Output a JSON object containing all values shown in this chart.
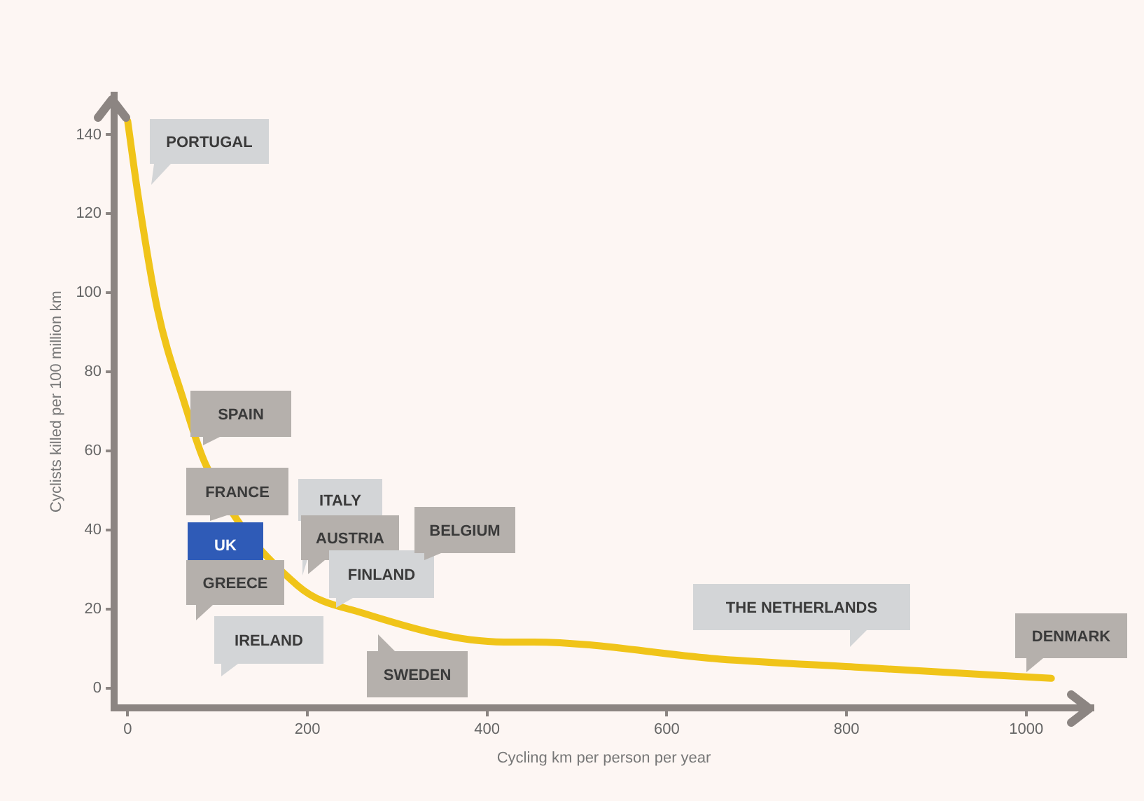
{
  "chart_data": {
    "type": "line",
    "xlabel": "Cycling km per person per year",
    "ylabel": "Cyclists killed per 100 million km",
    "xlim": [
      -15,
      1075
    ],
    "ylim": [
      -5,
      150
    ],
    "xticks": [
      0,
      200,
      400,
      600,
      800,
      1000
    ],
    "yticks": [
      0,
      20,
      40,
      60,
      80,
      100,
      120,
      140
    ],
    "marker": "none",
    "legend": false,
    "series": [
      {
        "color": "#f0c419",
        "x": [
          0,
          12,
          33,
          62,
          87,
          189,
          262,
          419,
          450,
          658,
          814,
          1028
        ],
        "values": [
          143.5,
          124,
          96,
          73,
          56.5,
          26,
          19,
          11.7,
          11.7,
          7.4,
          5.3,
          2.5
        ]
      }
    ],
    "annotations": [
      "PORTUGAL",
      "SPAIN",
      "FRANCE",
      "UK",
      "GREECE",
      "IRELAND",
      "ITALY",
      "AUSTRIA",
      "FINLAND",
      "BELGIUM",
      "SWEDEN",
      "THE NETHERLANDS",
      "DENMARK"
    ]
  }
}
